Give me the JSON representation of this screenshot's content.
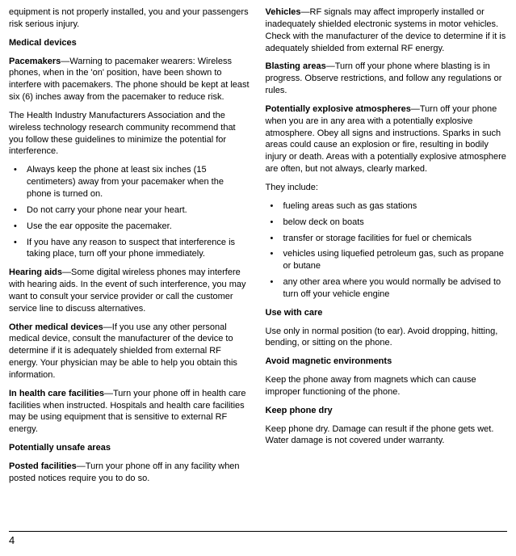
{
  "left": {
    "intro": "equipment is not properly installed, you and your passengers risk serious injury.",
    "h_medical": "Medical devices",
    "pacemakers": "—Warning to pacemaker wearers: Wireless phones, when in the 'on' position, have been shown to interfere with pacemakers. The phone should be kept at least six (6) inches away from the pacemaker to reduce risk.",
    "pacemakers_label": "Pacemakers",
    "health_assoc": "The Health Industry Manufacturers Association and the wireless technology research community recommend that you follow these guidelines to minimize the potential for interference.",
    "bullets1": [
      "Always keep the phone at least six inches (15 centimeters) away from your pacemaker when the phone is turned on.",
      "Do not carry your phone near your heart.",
      "Use the ear opposite the pacemaker.",
      "If you have any reason to suspect that interference is taking place, turn off your phone immediately."
    ],
    "hearing_label": "Hearing aids",
    "hearing": "—Some digital wireless phones may interfere with hearing aids. In the event of such interference, you may want to consult your service provider or call the customer service line to discuss alternatives.",
    "other_label": "Other medical devices",
    "other": "—If you use any other personal medical device, consult the manufacturer of the device to determine if it is adequately shielded from external RF energy. Your physician may be able to help you obtain this information.",
    "facilities_label": "In health care facilities",
    "facilities": "—Turn your phone off in health care facilities when instructed. Hospitals and health care facilities may be using equipment that is sensitive to external RF energy.",
    "h_unsafe": "Potentially unsafe areas",
    "posted_label": "Posted facilities",
    "posted": "—Turn your phone off in any facility when posted notices require you to do so."
  },
  "right": {
    "vehicles_label": "Vehicles",
    "vehicles": "—RF signals may affect improperly installed or inadequately shielded electronic systems in motor vehicles. Check with the manufacturer of the device to determine if it is adequately shielded from external RF energy.",
    "blasting_label": "Blasting areas",
    "blasting": "—Turn off your phone where blasting is in progress. Observe restrictions, and follow any regulations or rules.",
    "explosive_label": "Potentially explosive atmospheres",
    "explosive": "—Turn off your phone when you are in any area with a potentially explosive atmosphere. Obey all signs and instructions. Sparks in such areas could cause an explosion or fire, resulting in bodily injury or death. Areas with a potentially explosive atmosphere are often, but not always, clearly marked.",
    "they_include": "They include:",
    "bullets2": [
      "fueling areas such as gas stations",
      "below deck on boats",
      "transfer or storage facilities for fuel or chemicals",
      "vehicles using liquefied petroleum gas, such as propane or butane",
      "any other area where you would normally be advised to turn off your vehicle engine"
    ],
    "h_care": "Use with care",
    "care": "Use only in normal position (to ear). Avoid dropping, hitting, bending, or sitting on the phone.",
    "h_magnetic": "Avoid magnetic environments",
    "magnetic": "Keep the phone away from magnets which can cause improper functioning of the phone.",
    "h_dry": "Keep phone dry",
    "dry": "Keep phone dry. Damage can result if the phone gets wet. Water damage is not covered under warranty."
  },
  "page_number": "4"
}
